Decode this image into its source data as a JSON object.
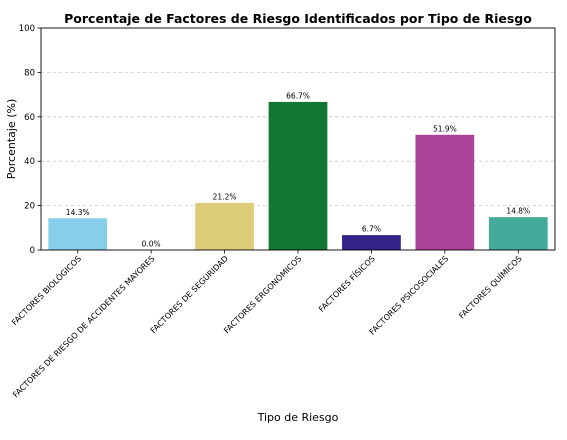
{
  "chart_data": {
    "type": "bar",
    "title": "Porcentaje de Factores de Riesgo Identificados por Tipo de Riesgo",
    "xlabel": "Tipo de Riesgo",
    "ylabel": "Porcentaje (%)",
    "ylim": [
      0,
      100
    ],
    "yticks": [
      0,
      20,
      40,
      60,
      80,
      100
    ],
    "yticks_labels": [
      "0",
      "20",
      "40",
      "60",
      "80",
      "100"
    ],
    "grid": "y-dashed",
    "categories": [
      "FACTORES BIOLÓGICOS",
      "FACTORES DE RIESGO DE ACCIDENTES MAYORES",
      "FACTORES DE SEGURIDAD",
      "FACTORES ERGONÓMICOS",
      "FACTORES FÍSICOS",
      "FACTORES PSICOSOCIALES",
      "FACTORES QUÍMICOS"
    ],
    "values": [
      14.3,
      0.0,
      21.2,
      66.7,
      6.7,
      51.9,
      14.8
    ],
    "data_labels": [
      "14.3%",
      "0.0%",
      "21.2%",
      "66.7%",
      "6.7%",
      "51.9%",
      "14.8%"
    ],
    "colors": [
      "#87ceeb",
      "#e8e8e8",
      "#ddcc77",
      "#117733",
      "#332288",
      "#aa4499",
      "#44aa99"
    ]
  }
}
